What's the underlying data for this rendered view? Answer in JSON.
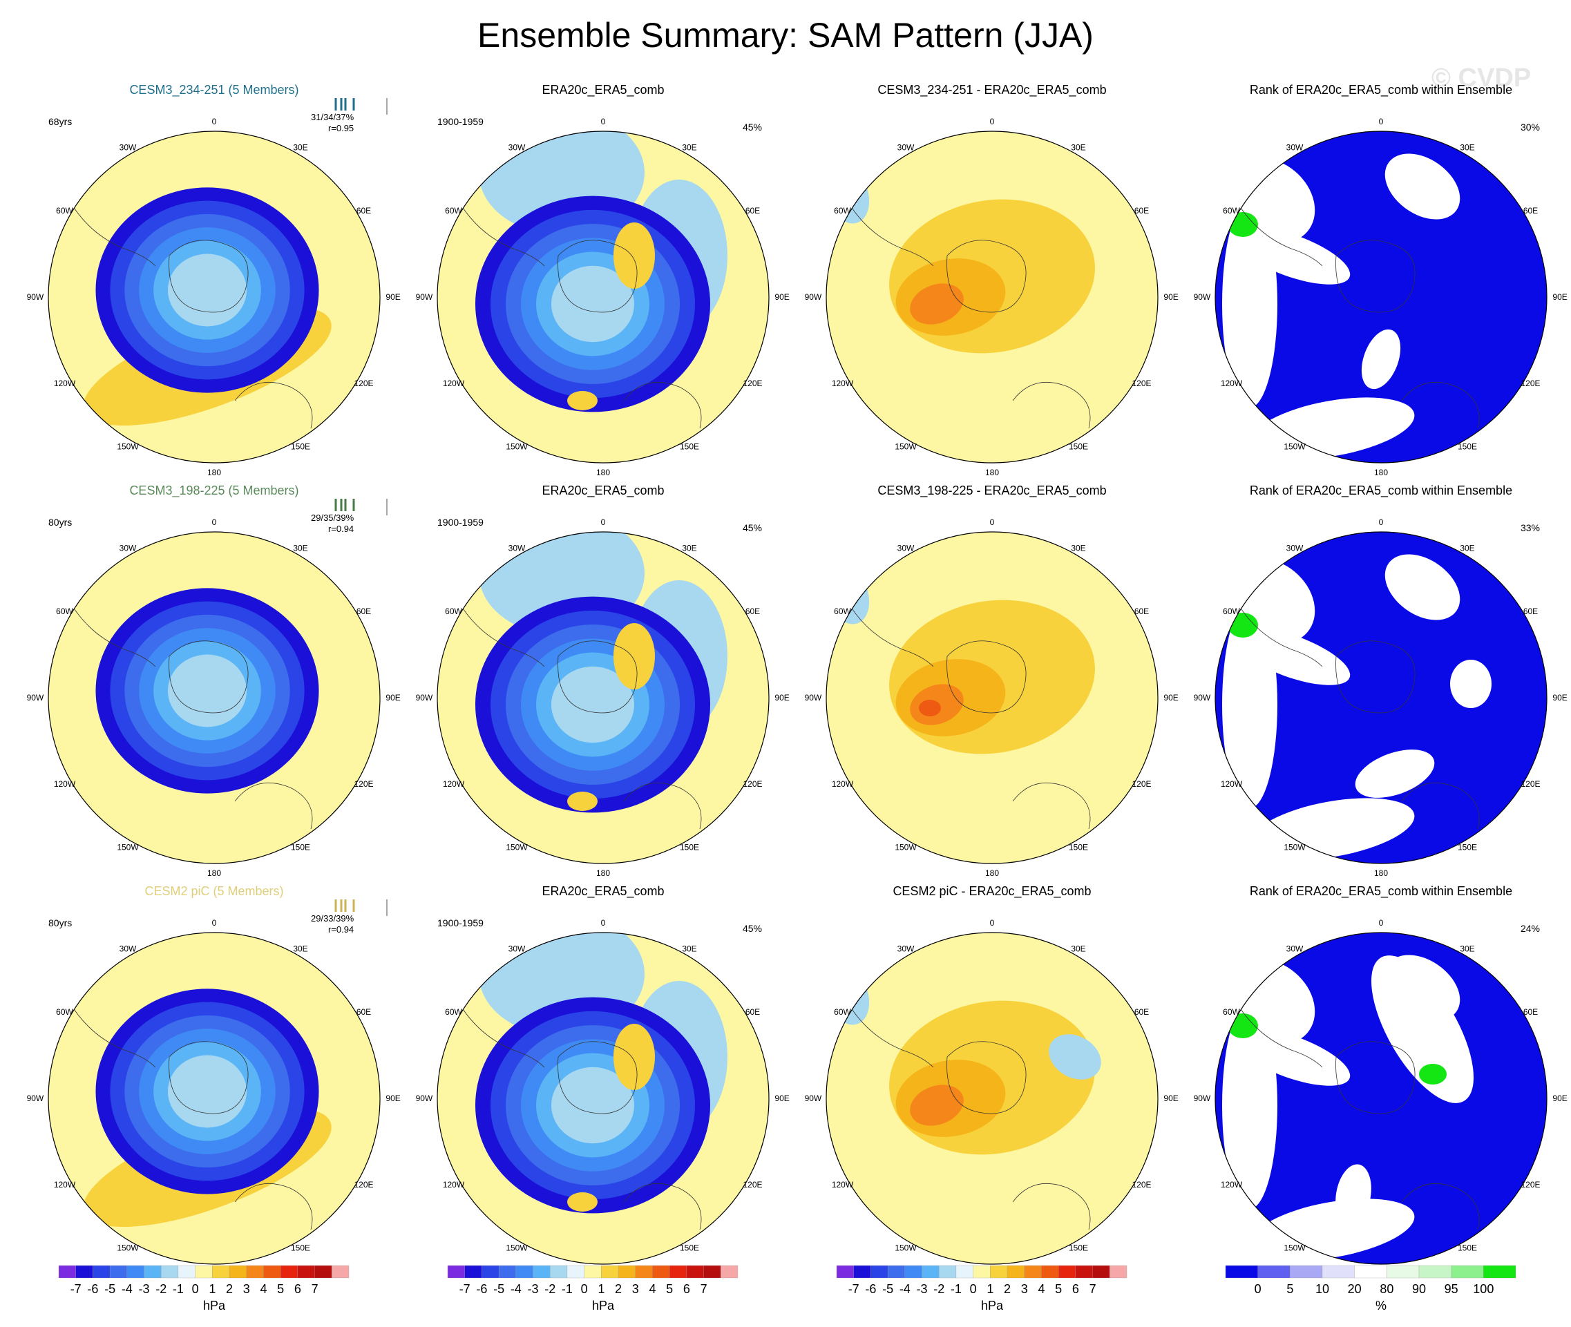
{
  "figure": {
    "title": "Ensemble Summary: SAM Pattern (JJA)",
    "watermark": "© CVDP"
  },
  "compass_labels": [
    "0",
    "30E",
    "60E",
    "90E",
    "120E",
    "150E",
    "180",
    "150W",
    "120W",
    "90W",
    "60W",
    "30W"
  ],
  "panels": [
    {
      "id": "r1c1",
      "title": "CESM3_234-251 (5 Members)",
      "title_color": "#1f6f8b",
      "left_text": "68yrs",
      "stats": "31/34/37%",
      "corr": "r=0.95",
      "kind": "ensemble",
      "bar_color": "#1f6f8b"
    },
    {
      "id": "r1c2",
      "title": "ERA20c_ERA5_comb",
      "title_color": "#000000",
      "left_text": "1900-1959",
      "right_text": "45%",
      "kind": "obs"
    },
    {
      "id": "r1c3",
      "title": "CESM3_234-251 - ERA20c_ERA5_comb",
      "title_color": "#000000",
      "kind": "diff"
    },
    {
      "id": "r1c4",
      "title": "Rank of ERA20c_ERA5_comb within Ensemble",
      "title_color": "#000000",
      "right_text": "30%",
      "kind": "rank"
    },
    {
      "id": "r2c1",
      "title": "CESM3_198-225 (5 Members)",
      "title_color": "#5a8a5a",
      "left_text": "80yrs",
      "stats": "29/35/39%",
      "corr": "r=0.94",
      "kind": "ensemble",
      "bar_color": "#4a7a4a"
    },
    {
      "id": "r2c2",
      "title": "ERA20c_ERA5_comb",
      "title_color": "#000000",
      "left_text": "1900-1959",
      "right_text": "45%",
      "kind": "obs"
    },
    {
      "id": "r2c3",
      "title": "CESM3_198-225 - ERA20c_ERA5_comb",
      "title_color": "#000000",
      "kind": "diff"
    },
    {
      "id": "r2c4",
      "title": "Rank of ERA20c_ERA5_comb within Ensemble",
      "title_color": "#000000",
      "right_text": "33%",
      "kind": "rank"
    },
    {
      "id": "r3c1",
      "title": "CESM2 piC (5 Members)",
      "title_color": "#e0cf7a",
      "left_text": "80yrs",
      "stats": "29/33/39%",
      "corr": "r=0.94",
      "kind": "ensemble",
      "bar_color": "#c9b458"
    },
    {
      "id": "r3c2",
      "title": "ERA20c_ERA5_comb",
      "title_color": "#000000",
      "left_text": "1900-1959",
      "right_text": "45%",
      "kind": "obs"
    },
    {
      "id": "r3c3",
      "title": "CESM2 piC - ERA20c_ERA5_comb",
      "title_color": "#000000",
      "kind": "diff"
    },
    {
      "id": "r3c4",
      "title": "Rank of ERA20c_ERA5_comb within Ensemble",
      "title_color": "#000000",
      "right_text": "24%",
      "kind": "rank"
    }
  ],
  "chart_data": {
    "type": "heatmap",
    "projection": "south-polar-stereographic",
    "field": "SAM Pattern (JJA) sea level pressure regression",
    "colorbars": [
      {
        "unit": "hPa",
        "ticks": [
          "-7",
          "-6",
          "-5",
          "-4",
          "-3",
          "-2",
          "-1",
          "0",
          "1",
          "2",
          "3",
          "4",
          "5",
          "6",
          "7"
        ],
        "colors": [
          "#7b2ce0",
          "#1a10d8",
          "#2b44e8",
          "#3d6cec",
          "#3f8af5",
          "#5ab4f5",
          "#a8d8f0",
          "#e8f4fb",
          "#fdf7a3",
          "#f8d23c",
          "#f6b41b",
          "#f5861a",
          "#ef5a12",
          "#e7240e",
          "#c9130f",
          "#b40e0e",
          "#f6a8a8"
        ]
      },
      {
        "unit": "%",
        "ticks": [
          "0",
          "5",
          "10",
          "20",
          "80",
          "90",
          "95",
          "100"
        ],
        "colors": [
          "#0a0ae6",
          "#6060f0",
          "#a8a8f5",
          "#e0e0fa",
          "#ffffff",
          "#e6fae6",
          "#c8f5c8",
          "#8cf08c",
          "#14e614"
        ]
      }
    ]
  }
}
